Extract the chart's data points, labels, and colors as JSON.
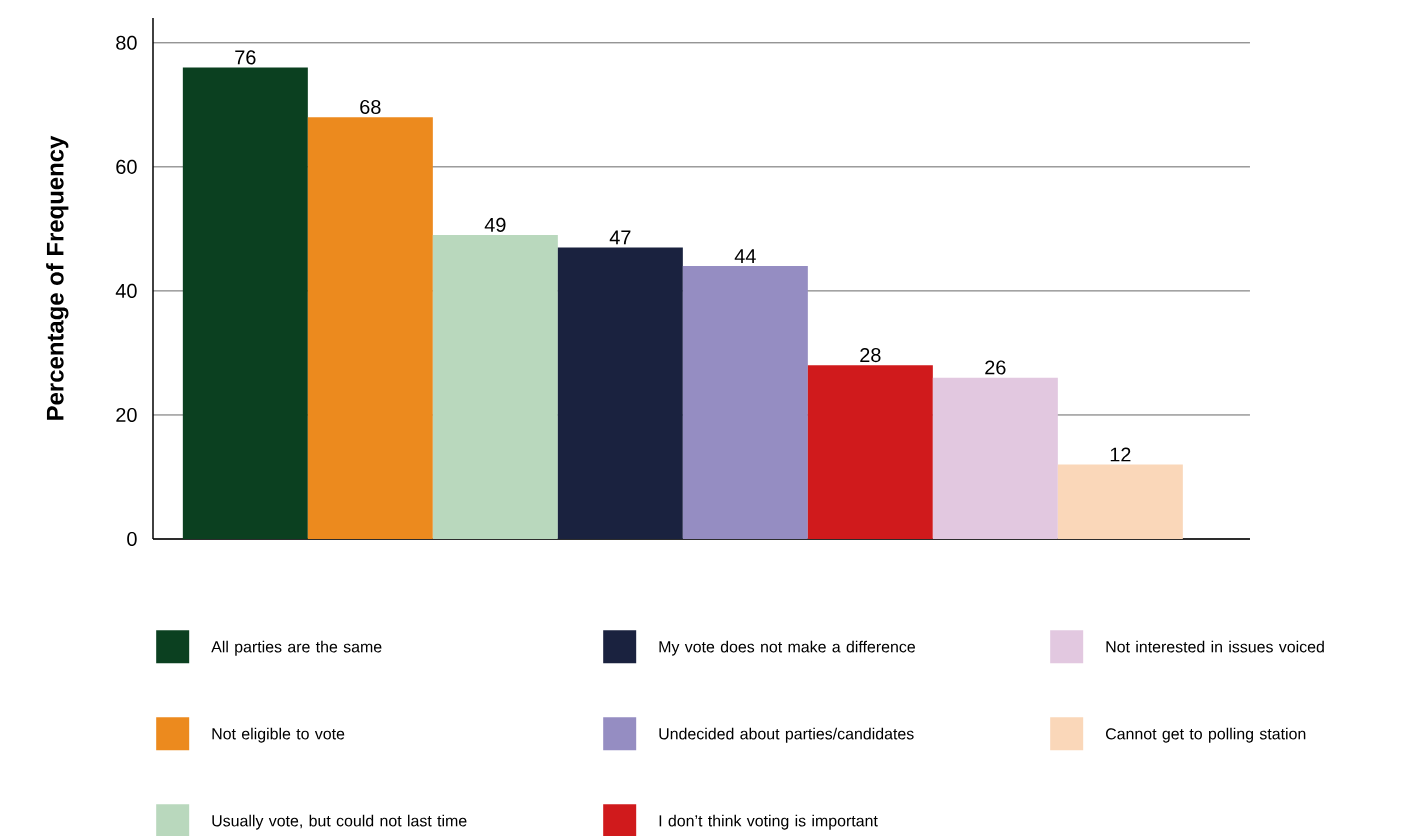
{
  "chart_data": {
    "type": "bar",
    "ylabel": "Percentage of Frequency",
    "categories": [
      null
    ],
    "ylim": [
      0,
      84
    ],
    "yticks": [
      0,
      20,
      40,
      60,
      80
    ],
    "grid": "y",
    "legend": "bottom",
    "data_labels": true,
    "series": [
      {
        "name": "All parties are the same",
        "color": "#0b4020",
        "values": [
          76
        ]
      },
      {
        "name": "Not eligible to vote",
        "color": "#ec8a1e",
        "values": [
          68
        ]
      },
      {
        "name": "Usually vote, but could not last time",
        "color": "#b9d8bd",
        "values": [
          49
        ]
      },
      {
        "name": "My vote does not make a difference",
        "color": "#1a223f",
        "values": [
          47
        ]
      },
      {
        "name": "Undecided about parties/candidates",
        "color": "#958dc2",
        "values": [
          44
        ]
      },
      {
        "name": "I don’t think voting is important",
        "color": "#d01a1c",
        "values": [
          28
        ]
      },
      {
        "name": "Not interested in issues voiced",
        "color": "#e2c8e0",
        "values": [
          26
        ]
      },
      {
        "name": "Cannot get to polling station",
        "color": "#fad7b9",
        "values": [
          12
        ]
      }
    ]
  }
}
